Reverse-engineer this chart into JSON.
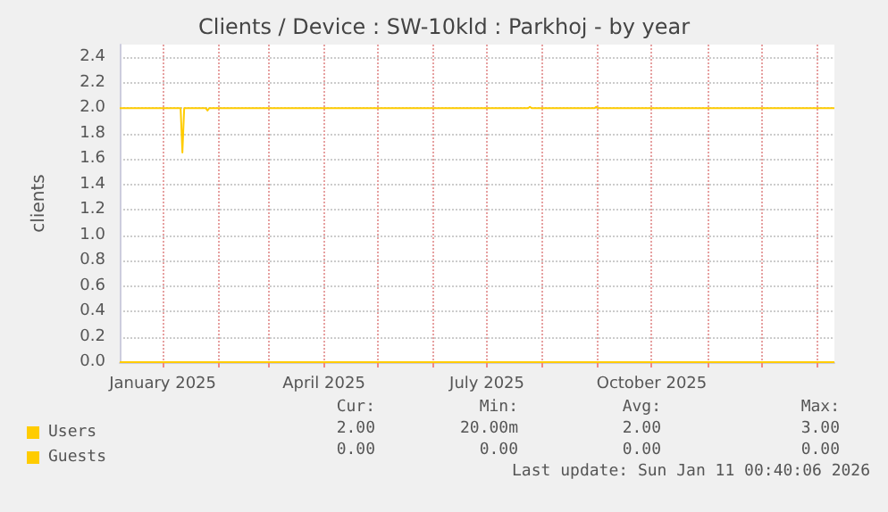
{
  "chart_data": {
    "type": "line",
    "title": "Clients / Device : SW-10kld : Parkhoj - by year",
    "ylabel": "clients",
    "xlim": [
      "2024-12-08",
      "2026-01-11"
    ],
    "xticks": [
      {
        "value": "2025-01-01",
        "label": "January 2025"
      },
      {
        "value": "2025-02-01",
        "label": null
      },
      {
        "value": "2025-03-01",
        "label": null
      },
      {
        "value": "2025-04-01",
        "label": "April 2025"
      },
      {
        "value": "2025-05-01",
        "label": null
      },
      {
        "value": "2025-06-01",
        "label": null
      },
      {
        "value": "2025-07-01",
        "label": "July 2025"
      },
      {
        "value": "2025-08-01",
        "label": null
      },
      {
        "value": "2025-09-01",
        "label": null
      },
      {
        "value": "2025-10-01",
        "label": "October 2025"
      },
      {
        "value": "2025-11-01",
        "label": null
      },
      {
        "value": "2025-12-01",
        "label": null
      },
      {
        "value": "2026-01-01",
        "label": null
      }
    ],
    "ylim": [
      0,
      2.5
    ],
    "yticks": [
      {
        "value": 0,
        "label": "0.0"
      },
      {
        "value": 0.2,
        "label": "0.2"
      },
      {
        "value": 0.4,
        "label": "0.4"
      },
      {
        "value": 0.6,
        "label": "0.6"
      },
      {
        "value": 0.8,
        "label": "0.8"
      },
      {
        "value": 1,
        "label": "1.0"
      },
      {
        "value": 1.2,
        "label": "1.2"
      },
      {
        "value": 1.4,
        "label": "1.4"
      },
      {
        "value": 1.6,
        "label": "1.6"
      },
      {
        "value": 1.8,
        "label": "1.8"
      },
      {
        "value": 2,
        "label": "2.0"
      },
      {
        "value": 2.2,
        "label": "2.2"
      },
      {
        "value": 2.4,
        "label": "2.4"
      }
    ],
    "grid": true,
    "legend": "bottom left",
    "marker": "none",
    "line_style": "solid",
    "series": [
      {
        "name": "Users",
        "color": "#ffcc00",
        "x": [
          "2024-12-08",
          "2025-01-11",
          "2025-01-12",
          "2025-01-13",
          "2025-01-25",
          "2025-01-26",
          "2025-01-27",
          "2025-07-24",
          "2025-07-25",
          "2025-07-26",
          "2025-08-30",
          "2025-08-31",
          "2025-09-01",
          "2026-01-11"
        ],
        "values": [
          2,
          2,
          1.65,
          2,
          2,
          1.98,
          2,
          2,
          2.01,
          2,
          2,
          2.01,
          2,
          2
        ]
      },
      {
        "name": "Guests",
        "color": "#ffcc00",
        "x": [
          "2024-12-08",
          "2026-01-11"
        ],
        "values": [
          0,
          0
        ]
      }
    ],
    "annotations": [
      "Cur:",
      "Min:",
      "Avg:",
      "Max:",
      "2.00",
      "20.00m",
      "2.00",
      "3.00",
      "0.00",
      "0.00",
      "0.00",
      "0.00",
      "Last update: Sun Jan 11 00:40:06 2026"
    ]
  }
}
